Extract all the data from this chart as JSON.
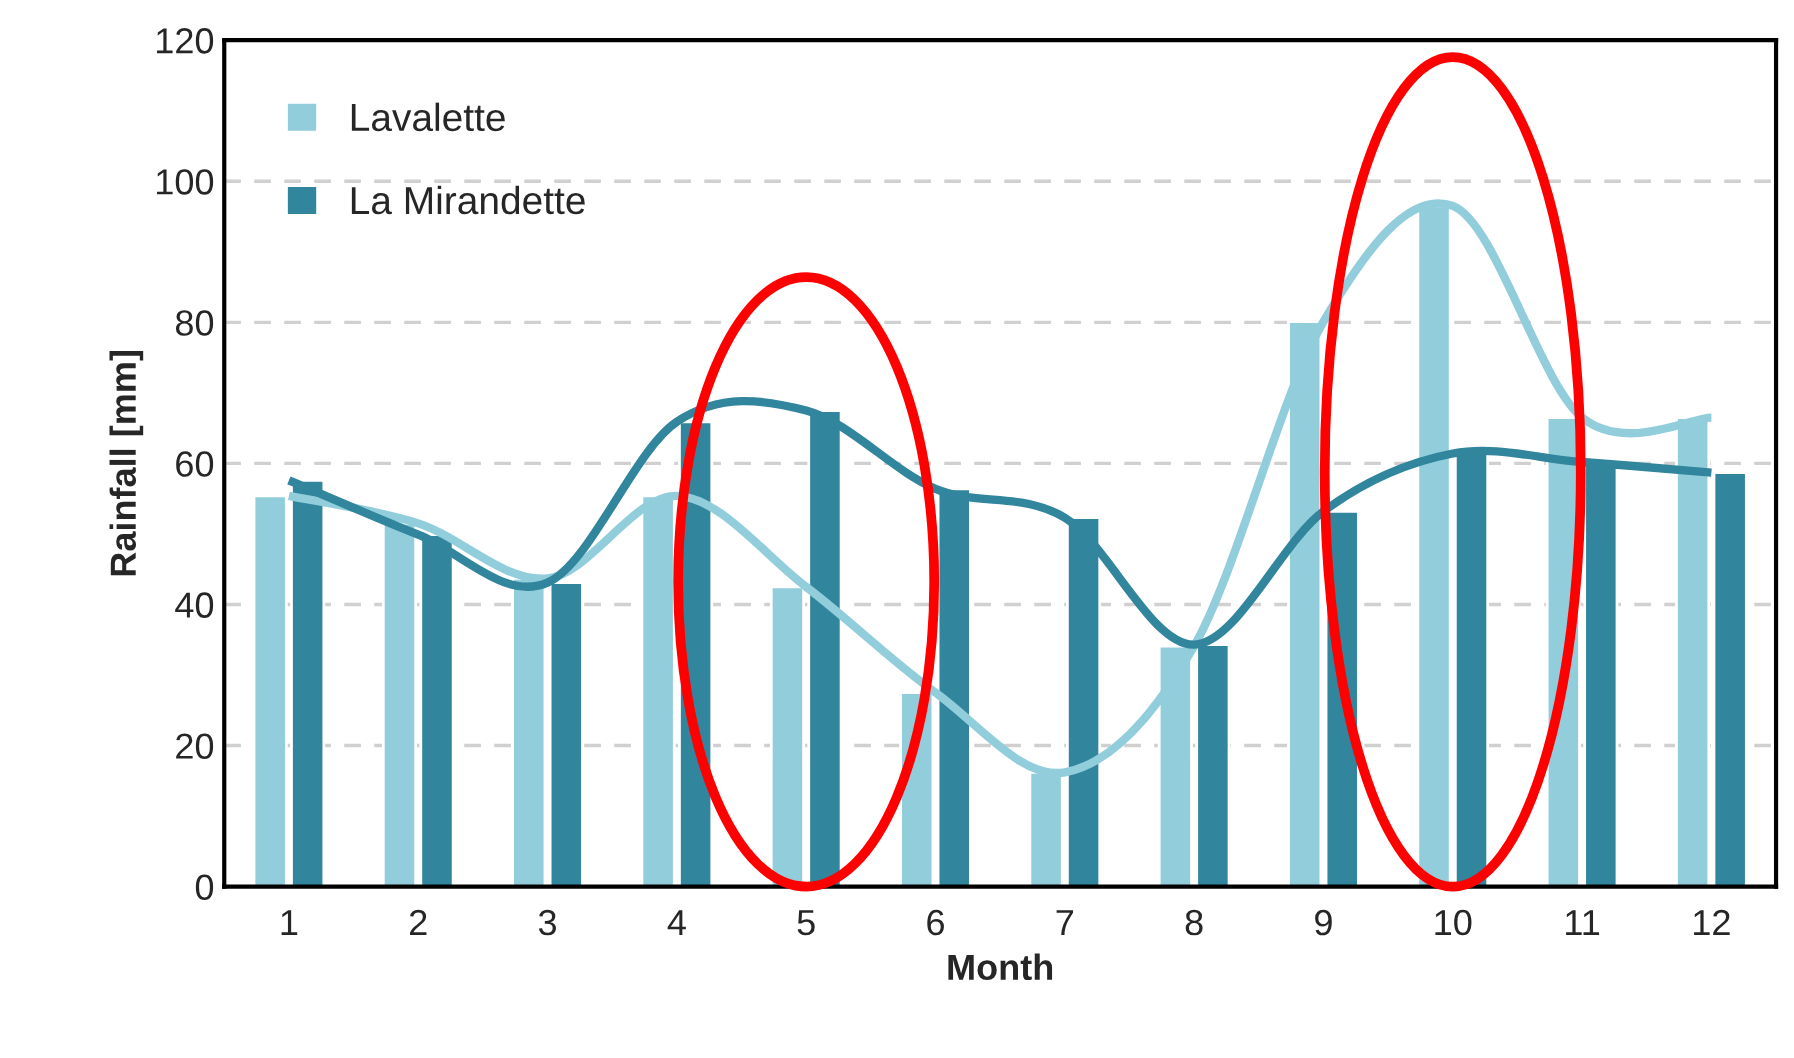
{
  "chart_data": {
    "type": "bar",
    "xlabel": "Month",
    "ylabel": "Rainfall [mm]",
    "categories": [
      "1",
      "2",
      "3",
      "4",
      "5",
      "6",
      "7",
      "8",
      "9",
      "10",
      "11",
      "12"
    ],
    "series": [
      {
        "name": "Lavalette",
        "color": "#92cddc",
        "values": [
          55.4,
          51.5,
          43.7,
          55.4,
          42.5,
          27.5,
          16.2,
          34.1,
          80.1,
          96.5,
          66.5,
          66.5
        ]
      },
      {
        "name": "La Mirandette",
        "color": "#31859c",
        "values": [
          57.6,
          49.9,
          43.1,
          65.9,
          67.5,
          56.4,
          52.3,
          34.3,
          53.2,
          61.4,
          60.2,
          58.7
        ]
      },
      {
        "type": "line",
        "color": "#92cddc",
        "values": [
          55.4,
          51.5,
          43.7,
          55.4,
          42.5,
          27.5,
          16.2,
          34.1,
          80.1,
          96.5,
          66.5,
          66.5
        ]
      },
      {
        "type": "line",
        "color": "#31859c",
        "values": [
          57.6,
          49.9,
          43.1,
          65.9,
          67.5,
          56.4,
          52.3,
          34.3,
          53.2,
          61.4,
          60.2,
          58.7
        ]
      }
    ],
    "ylim": [
      0,
      120
    ],
    "yticks": [
      0,
      20,
      40,
      60,
      80,
      100,
      120
    ],
    "grid": "y",
    "legend": "top left",
    "line_style": "solid"
  }
}
